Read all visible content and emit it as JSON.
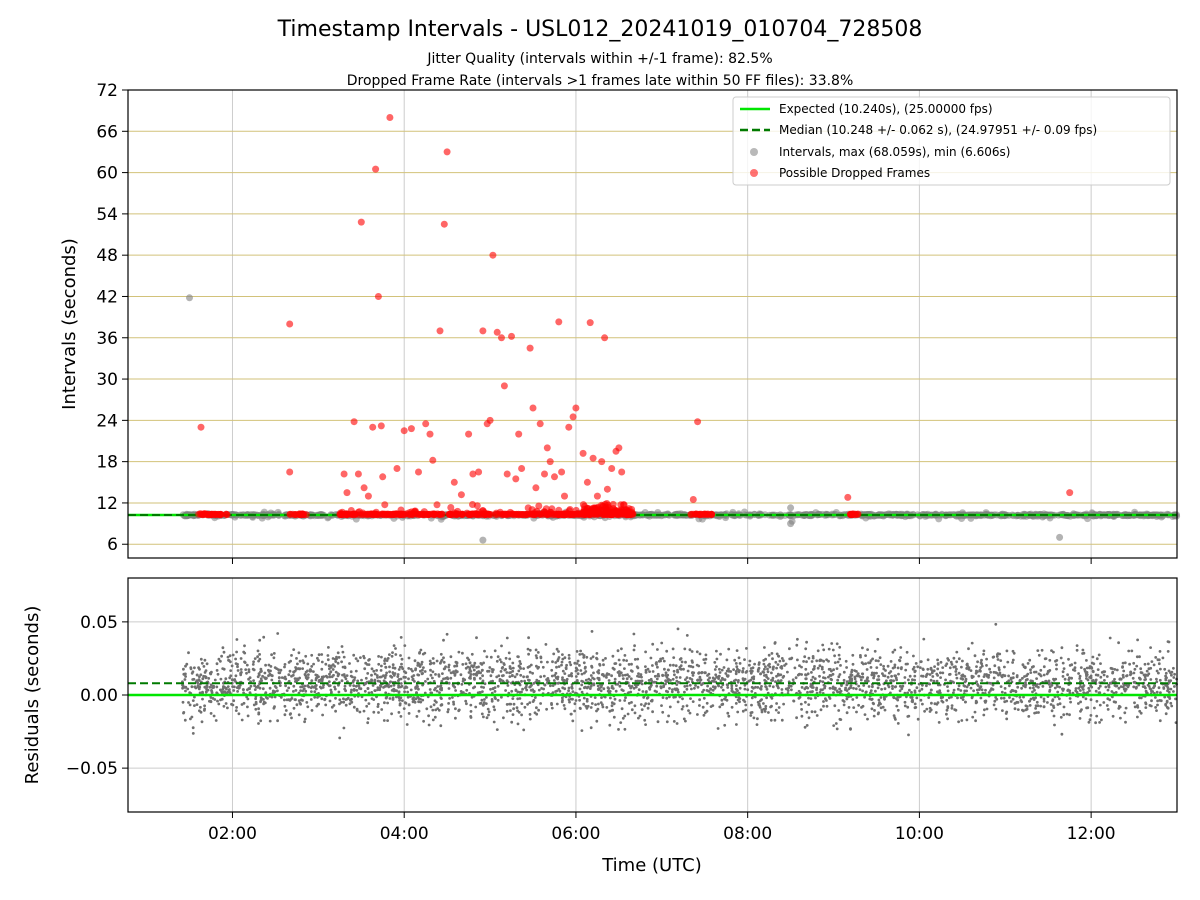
{
  "title": "Timestamp Intervals - USL012_20241019_010704_728508",
  "subtitle_lines": [
    "Jitter Quality (intervals within +/-1 frame): 82.5%",
    "Dropped Frame Rate (intervals >1 frames late within 50 FF files): 33.8%"
  ],
  "colors": {
    "expected": "#00e600",
    "median": "#007a00",
    "intervals": "#808080",
    "dropped": "#ff0000",
    "residual_points": "#707070",
    "grid": "#cccccc",
    "hgrid_top": "#d2c27a"
  },
  "chart_data": [
    {
      "type": "scatter",
      "panel": "top",
      "ylabel": "Intervals (seconds)",
      "xlim": [
        "00:47",
        "13:00"
      ],
      "ylim": [
        4,
        72
      ],
      "yticks": [
        6,
        12,
        18,
        24,
        30,
        36,
        42,
        48,
        54,
        60,
        66,
        72
      ],
      "grid": true,
      "legend_placement": "top-right",
      "legend": [
        "Expected (10.240s), (25.00000 fps)",
        "Median (10.248 +/- 0.062 s), (24.97951 +/- 0.09 fps)",
        "Intervals, max (68.059s), min (6.606s)",
        "Possible Dropped Frames"
      ],
      "expected_value": 10.24,
      "median_value": 10.248,
      "interval_time_range": [
        "01:25",
        "13:00"
      ],
      "interval_baseline": 10.24,
      "intervals_notable": [
        {
          "x": "01:30",
          "y": 41.8
        },
        {
          "x": "04:55",
          "y": 6.6
        },
        {
          "x": "08:30",
          "y": 11.3
        },
        {
          "x": "08:30",
          "y": 9.0
        },
        {
          "x": "11:38",
          "y": 7.0
        }
      ],
      "dropped_dense_ranges": [
        [
          "01:35",
          "01:57"
        ],
        [
          "02:40",
          "02:52"
        ],
        [
          "03:15",
          "06:40"
        ],
        [
          "07:20",
          "07:35"
        ],
        [
          "09:10",
          "09:18"
        ]
      ],
      "dropped_frames": [
        {
          "x": "01:38",
          "y": 23.0
        },
        {
          "x": "02:40",
          "y": 38.0
        },
        {
          "x": "02:40",
          "y": 16.5
        },
        {
          "x": "03:18",
          "y": 16.2
        },
        {
          "x": "03:20",
          "y": 13.5
        },
        {
          "x": "03:25",
          "y": 23.8
        },
        {
          "x": "03:28",
          "y": 16.2
        },
        {
          "x": "03:30",
          "y": 52.8
        },
        {
          "x": "03:32",
          "y": 14.2
        },
        {
          "x": "03:35",
          "y": 13.0
        },
        {
          "x": "03:38",
          "y": 23.0
        },
        {
          "x": "03:40",
          "y": 60.5
        },
        {
          "x": "03:42",
          "y": 42.0
        },
        {
          "x": "03:44",
          "y": 23.2
        },
        {
          "x": "03:45",
          "y": 15.8
        },
        {
          "x": "03:50",
          "y": 68.0
        },
        {
          "x": "03:55",
          "y": 17.0
        },
        {
          "x": "04:00",
          "y": 22.5
        },
        {
          "x": "04:05",
          "y": 22.8
        },
        {
          "x": "04:10",
          "y": 16.5
        },
        {
          "x": "04:15",
          "y": 23.5
        },
        {
          "x": "04:18",
          "y": 22.0
        },
        {
          "x": "04:20",
          "y": 18.2
        },
        {
          "x": "04:25",
          "y": 37.0
        },
        {
          "x": "04:28",
          "y": 52.5
        },
        {
          "x": "04:30",
          "y": 63.0
        },
        {
          "x": "04:35",
          "y": 15.0
        },
        {
          "x": "04:40",
          "y": 13.2
        },
        {
          "x": "04:45",
          "y": 22.0
        },
        {
          "x": "04:48",
          "y": 16.2
        },
        {
          "x": "04:52",
          "y": 16.5
        },
        {
          "x": "04:55",
          "y": 37.0
        },
        {
          "x": "04:58",
          "y": 23.5
        },
        {
          "x": "05:00",
          "y": 24.0
        },
        {
          "x": "05:02",
          "y": 48.0
        },
        {
          "x": "05:05",
          "y": 36.8
        },
        {
          "x": "05:08",
          "y": 36.0
        },
        {
          "x": "05:10",
          "y": 29.0
        },
        {
          "x": "05:12",
          "y": 16.2
        },
        {
          "x": "05:15",
          "y": 36.2
        },
        {
          "x": "05:18",
          "y": 15.5
        },
        {
          "x": "05:20",
          "y": 22.0
        },
        {
          "x": "05:22",
          "y": 17.0
        },
        {
          "x": "05:28",
          "y": 34.5
        },
        {
          "x": "05:30",
          "y": 25.8
        },
        {
          "x": "05:32",
          "y": 14.2
        },
        {
          "x": "05:35",
          "y": 23.5
        },
        {
          "x": "05:38",
          "y": 16.2
        },
        {
          "x": "05:40",
          "y": 20.0
        },
        {
          "x": "05:42",
          "y": 18.0
        },
        {
          "x": "05:45",
          "y": 15.8
        },
        {
          "x": "05:48",
          "y": 38.3
        },
        {
          "x": "05:50",
          "y": 16.5
        },
        {
          "x": "05:52",
          "y": 13.0
        },
        {
          "x": "05:55",
          "y": 23.0
        },
        {
          "x": "05:58",
          "y": 24.5
        },
        {
          "x": "06:00",
          "y": 25.8
        },
        {
          "x": "06:05",
          "y": 19.2
        },
        {
          "x": "06:08",
          "y": 15.0
        },
        {
          "x": "06:10",
          "y": 38.2
        },
        {
          "x": "06:12",
          "y": 18.5
        },
        {
          "x": "06:15",
          "y": 13.0
        },
        {
          "x": "06:18",
          "y": 18.0
        },
        {
          "x": "06:20",
          "y": 36.0
        },
        {
          "x": "06:22",
          "y": 14.0
        },
        {
          "x": "06:25",
          "y": 17.0
        },
        {
          "x": "06:28",
          "y": 19.5
        },
        {
          "x": "06:30",
          "y": 20.0
        },
        {
          "x": "06:32",
          "y": 16.5
        },
        {
          "x": "07:22",
          "y": 12.5
        },
        {
          "x": "07:25",
          "y": 23.8
        },
        {
          "x": "09:10",
          "y": 12.8
        },
        {
          "x": "11:45",
          "y": 13.5
        }
      ]
    },
    {
      "type": "scatter",
      "panel": "bottom",
      "xlabel": "Time (UTC)",
      "ylabel": "Residuals (seconds)",
      "xlim": [
        "00:47",
        "13:00"
      ],
      "ylim": [
        -0.08,
        0.08
      ],
      "xticks": [
        "02:00",
        "04:00",
        "06:00",
        "08:00",
        "10:00",
        "12:00"
      ],
      "yticks": [
        -0.05,
        0.0,
        0.05
      ],
      "ytick_labels": [
        "−0.05",
        "0.00",
        "0.05"
      ],
      "grid": true,
      "zero_line": 0.0,
      "median_residual": 0.008,
      "residual_spread": 0.025,
      "residual_time_range": [
        "01:25",
        "13:00"
      ]
    }
  ]
}
